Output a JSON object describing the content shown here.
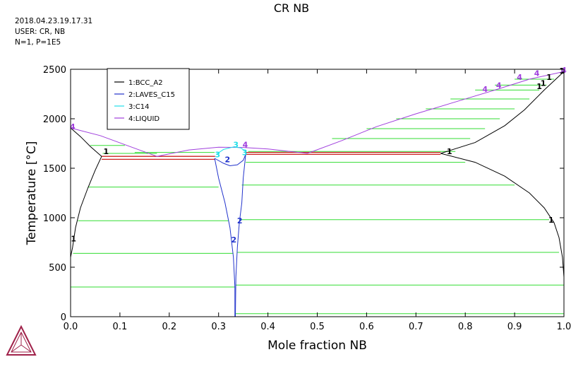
{
  "title": "CR NB",
  "meta": {
    "date": "2018.04.23.19.17.31",
    "user": "USER: CR, NB",
    "conditions": "N=1, P=1E5"
  },
  "chart_data": {
    "type": "line",
    "title": "CR NB",
    "xlabel": "Mole fraction NB",
    "ylabel": "Temperature [°C]",
    "xlim": [
      0,
      1
    ],
    "ylim": [
      0,
      2500
    ],
    "xticks": [
      "0.0",
      "0.1",
      "0.2",
      "0.3",
      "0.4",
      "0.5",
      "0.6",
      "0.7",
      "0.8",
      "0.9",
      "1.0"
    ],
    "yticks": [
      "0",
      "500",
      "1000",
      "1500",
      "2000",
      "2500"
    ],
    "grid": false,
    "legend_position": "top-left",
    "legend": [
      {
        "label": "1:BCC_A2",
        "color": "#000000"
      },
      {
        "label": "2:LAVES_C15",
        "color": "#2233cc"
      },
      {
        "label": "3:C14",
        "color": "#22e0e8"
      },
      {
        "label": "4:LIQUID",
        "color": "#a040dd"
      }
    ],
    "colors": {
      "tie_line": "#33dd33",
      "invariant": "#cc2222",
      "axis": "#000000"
    },
    "series": [
      {
        "name": "1:BCC_A2",
        "color": "#000000",
        "points": [
          [
            0,
            1907
          ],
          [
            0.02,
            1820
          ],
          [
            0.04,
            1720
          ],
          [
            0.063,
            1620
          ]
        ]
      },
      {
        "name": "1:BCC_A2",
        "color": "#000000",
        "points": [
          [
            0.063,
            1620
          ],
          [
            0.05,
            1480
          ],
          [
            0.035,
            1300
          ],
          [
            0.02,
            1100
          ],
          [
            0.01,
            900
          ],
          [
            0.004,
            700
          ],
          [
            0,
            600
          ]
        ]
      },
      {
        "name": "1:BCC_A2",
        "color": "#000000",
        "points": [
          [
            0.75,
            1650
          ],
          [
            0.82,
            1760
          ],
          [
            0.88,
            1930
          ],
          [
            0.92,
            2090
          ],
          [
            0.96,
            2290
          ],
          [
            1.0,
            2477
          ]
        ]
      },
      {
        "name": "1:BCC_A2",
        "color": "#000000",
        "points": [
          [
            0.75,
            1650
          ],
          [
            0.82,
            1560
          ],
          [
            0.88,
            1420
          ],
          [
            0.93,
            1250
          ],
          [
            0.96,
            1100
          ],
          [
            0.98,
            950
          ],
          [
            0.99,
            800
          ],
          [
            0.997,
            600
          ],
          [
            1.0,
            400
          ]
        ]
      },
      {
        "name": "4:LIQUID",
        "color": "#a040dd",
        "points": [
          [
            0,
            1907
          ],
          [
            0.06,
            1830
          ],
          [
            0.12,
            1720
          ],
          [
            0.175,
            1620
          ]
        ]
      },
      {
        "name": "4:LIQUID",
        "color": "#a040dd",
        "points": [
          [
            0.175,
            1620
          ],
          [
            0.24,
            1685
          ],
          [
            0.3,
            1712
          ],
          [
            0.35,
            1710
          ],
          [
            0.4,
            1695
          ],
          [
            0.48,
            1650
          ]
        ]
      },
      {
        "name": "4:LIQUID",
        "color": "#a040dd",
        "points": [
          [
            0.48,
            1650
          ],
          [
            0.55,
            1780
          ],
          [
            0.62,
            1920
          ],
          [
            0.7,
            2050
          ],
          [
            0.78,
            2170
          ],
          [
            0.86,
            2290
          ],
          [
            0.93,
            2400
          ],
          [
            1.0,
            2477
          ]
        ]
      },
      {
        "name": "2:LAVES_C15",
        "color": "#2233cc",
        "points": [
          [
            0.292,
            1600
          ],
          [
            0.31,
            1550
          ],
          [
            0.323,
            1525
          ],
          [
            0.338,
            1535
          ],
          [
            0.35,
            1580
          ],
          [
            0.355,
            1640
          ]
        ]
      },
      {
        "name": "2:LAVES_C15",
        "color": "#2233cc",
        "points": [
          [
            0.292,
            1600
          ],
          [
            0.3,
            1400
          ],
          [
            0.313,
            1150
          ],
          [
            0.323,
            900
          ],
          [
            0.33,
            600
          ],
          [
            0.333,
            300
          ],
          [
            0.333,
            0
          ]
        ]
      },
      {
        "name": "2:LAVES_C15",
        "color": "#2233cc",
        "points": [
          [
            0.355,
            1640
          ],
          [
            0.35,
            1400
          ],
          [
            0.347,
            1150
          ],
          [
            0.342,
            950
          ],
          [
            0.338,
            700
          ],
          [
            0.335,
            400
          ],
          [
            0.334,
            0
          ]
        ]
      },
      {
        "name": "3:C14",
        "color": "#22e0e8",
        "points": [
          [
            0.295,
            1640
          ],
          [
            0.31,
            1690
          ],
          [
            0.33,
            1715
          ],
          [
            0.345,
            1705
          ],
          [
            0.355,
            1670
          ]
        ]
      }
    ],
    "invariants": [
      {
        "x": [
          0.063,
          0.293
        ],
        "y": 1620
      },
      {
        "x": [
          0.063,
          0.293
        ],
        "y": 1590
      },
      {
        "x": [
          0.355,
          0.75
        ],
        "y": 1660
      },
      {
        "x": [
          0.355,
          0.75
        ],
        "y": 1640
      }
    ],
    "tie_lines": [
      {
        "x": [
          0.065,
          0.175
        ],
        "y": 1650
      },
      {
        "x": [
          0.04,
          0.11
        ],
        "y": 1730
      },
      {
        "x": [
          0.13,
          0.292
        ],
        "y": 1660
      },
      {
        "x": [
          0.035,
          0.3
        ],
        "y": 1310
      },
      {
        "x": [
          0.015,
          0.32
        ],
        "y": 970
      },
      {
        "x": [
          0.005,
          0.33
        ],
        "y": 640
      },
      {
        "x": [
          0.0,
          0.333
        ],
        "y": 300
      },
      {
        "x": [
          0.355,
          0.8
        ],
        "y": 1560
      },
      {
        "x": [
          0.347,
          0.9
        ],
        "y": 1330
      },
      {
        "x": [
          0.342,
          0.97
        ],
        "y": 980
      },
      {
        "x": [
          0.338,
          0.99
        ],
        "y": 650
      },
      {
        "x": [
          0.335,
          1.0
        ],
        "y": 320
      },
      {
        "x": [
          0.334,
          1.0
        ],
        "y": 30
      },
      {
        "x": [
          0.36,
          0.78
        ],
        "y": 1670
      },
      {
        "x": [
          0.53,
          0.81
        ],
        "y": 1800
      },
      {
        "x": [
          0.6,
          0.84
        ],
        "y": 1900
      },
      {
        "x": [
          0.66,
          0.87
        ],
        "y": 2000
      },
      {
        "x": [
          0.72,
          0.9
        ],
        "y": 2100
      },
      {
        "x": [
          0.77,
          0.93
        ],
        "y": 2200
      },
      {
        "x": [
          0.82,
          0.95
        ],
        "y": 2290
      },
      {
        "x": [
          0.86,
          0.965
        ],
        "y": 2340
      },
      {
        "x": [
          0.9,
          0.98
        ],
        "y": 2400
      }
    ],
    "labels": [
      {
        "text": "1",
        "x": 0.072,
        "y": 1670,
        "color": "#000000"
      },
      {
        "text": "1",
        "x": 0.768,
        "y": 1670,
        "color": "#000000"
      },
      {
        "text": "1",
        "x": 0.974,
        "y": 980,
        "color": "#000000"
      },
      {
        "text": "1",
        "x": 0.006,
        "y": 790,
        "color": "#000000"
      },
      {
        "text": "1",
        "x": 0.95,
        "y": 2330,
        "color": "#000000"
      },
      {
        "text": "1",
        "x": 0.97,
        "y": 2420,
        "color": "#000000"
      },
      {
        "text": "1",
        "x": 0.958,
        "y": 2360,
        "color": "#000000"
      },
      {
        "text": "1",
        "x": 0.996,
        "y": 2487,
        "color": "#000000"
      },
      {
        "text": "2",
        "x": 0.318,
        "y": 1590,
        "color": "#2233cc"
      },
      {
        "text": "2",
        "x": 0.343,
        "y": 970,
        "color": "#2233cc"
      },
      {
        "text": "2",
        "x": 0.331,
        "y": 780,
        "color": "#2233cc"
      },
      {
        "text": "3",
        "x": 0.335,
        "y": 1740,
        "color": "#22e0e8"
      },
      {
        "text": "3",
        "x": 0.298,
        "y": 1640,
        "color": "#22e0e8"
      },
      {
        "text": "3",
        "x": 0.353,
        "y": 1660,
        "color": "#22e0e8"
      },
      {
        "text": "4",
        "x": 0.354,
        "y": 1740,
        "color": "#a040dd"
      },
      {
        "text": "4",
        "x": 0.84,
        "y": 2300,
        "color": "#a040dd"
      },
      {
        "text": "4",
        "x": 0.868,
        "y": 2340,
        "color": "#a040dd"
      },
      {
        "text": "4",
        "x": 0.91,
        "y": 2420,
        "color": "#a040dd"
      },
      {
        "text": "4",
        "x": 0.945,
        "y": 2460,
        "color": "#a040dd"
      },
      {
        "text": "4",
        "x": 0.004,
        "y": 1920,
        "color": "#a040dd"
      },
      {
        "text": "4",
        "x": 1.0,
        "y": 2492,
        "color": "#a040dd"
      }
    ]
  }
}
